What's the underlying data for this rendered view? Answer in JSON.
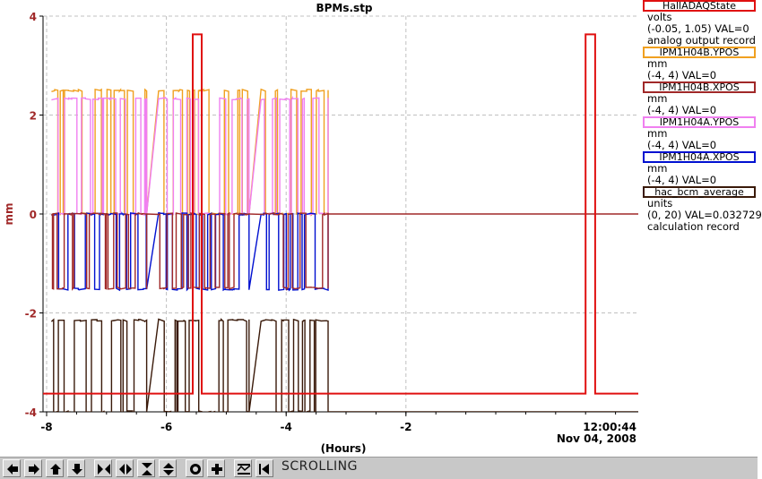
{
  "chart_data": {
    "type": "line",
    "title": "BPMs.stp",
    "xlabel": "(Hours)",
    "ylabel": "mm",
    "xlim": [
      -8.06,
      1.88
    ],
    "ylim": [
      -4,
      4
    ],
    "x_ticks": [
      -8,
      -6,
      -4,
      -2
    ],
    "x_tick_labels": [
      "-8",
      "-6",
      "-4",
      "-2"
    ],
    "y_ticks": [
      4,
      2,
      0,
      -2,
      -4
    ],
    "y_tick_labels": [
      "4",
      "2",
      "0",
      "-2",
      "-4"
    ],
    "end_time": "12:00:44",
    "end_date": "Nov 04, 2008",
    "grid": true,
    "series": [
      {
        "name": "HallADAQState",
        "color": "#e01010",
        "segments": [
          [
            [
              -8.06,
              -3.63
            ],
            [
              -5.56,
              -3.63
            ],
            [
              -5.56,
              3.63
            ],
            [
              -5.41,
              3.63
            ],
            [
              -5.41,
              -3.63
            ],
            [
              1.0,
              -3.63
            ],
            [
              1.0,
              3.63
            ],
            [
              1.16,
              3.63
            ],
            [
              1.16,
              -3.63
            ],
            [
              1.88,
              -3.63
            ]
          ]
        ]
      },
      {
        "name": "IPM1H04B.YPOS",
        "color": "#f0a020",
        "high": 2.5,
        "low": 0.0,
        "segments": [
          [
            -7.92,
            -6.33
          ],
          [
            -6.13,
            -4.62
          ],
          [
            -4.42,
            -3.3
          ]
        ]
      },
      {
        "name": "IPM1H04A.YPOS",
        "color": "#f080f0",
        "high": 2.33,
        "low": 0.0,
        "segments": [
          [
            -7.92,
            -6.33
          ],
          [
            -6.13,
            -4.62
          ],
          [
            -4.42,
            -3.3
          ]
        ]
      },
      {
        "name": "IPM1H04A.XPOS",
        "color": "#0010d0",
        "high": 0.0,
        "low": -1.52,
        "segments": [
          [
            -7.92,
            -6.33
          ],
          [
            -6.13,
            -4.62
          ],
          [
            -4.42,
            -3.3
          ]
        ]
      },
      {
        "name": "IPM1H04B.XPOS",
        "color": "#a02828",
        "high": 0.0,
        "low": -1.5,
        "baseline": 0.0,
        "segments": [
          [
            -7.92,
            -6.33
          ],
          [
            -6.13,
            -4.62
          ],
          [
            -4.42,
            -3.3
          ]
        ]
      },
      {
        "name": "hac_bcm_average",
        "color": "#3a1a0a",
        "high": -2.15,
        "low": -4.0,
        "baseline": -4.0,
        "segments": [
          [
            -7.92,
            -6.33
          ],
          [
            -6.13,
            -4.62
          ],
          [
            -4.42,
            -3.3
          ]
        ]
      }
    ]
  },
  "legend": [
    {
      "name": "HallADAQState",
      "color": "#e01010",
      "lines": [
        "volts",
        "(-0.05, 1.05) VAL=0",
        "analog output record"
      ]
    },
    {
      "name": "IPM1H04B.YPOS",
      "color": "#f0a020",
      "lines": [
        "mm",
        "(-4, 4) VAL=0"
      ]
    },
    {
      "name": "IPM1H04B.XPOS",
      "color": "#a02828",
      "lines": [
        "mm",
        "(-4, 4) VAL=0"
      ]
    },
    {
      "name": "IPM1H04A.YPOS",
      "color": "#f080f0",
      "lines": [
        "mm",
        "(-4, 4) VAL=0"
      ]
    },
    {
      "name": "IPM1H04A.XPOS",
      "color": "#0010d0",
      "lines": [
        "mm",
        "(-4, 4) VAL=0"
      ]
    },
    {
      "name": "hac_bcm_average",
      "color": "#3a1a0a",
      "lines": [
        "units",
        "(0, 20) VAL=0.032729",
        "calculation record"
      ]
    }
  ],
  "toolbar": {
    "buttons": [
      {
        "icon": "arrow-left-icon"
      },
      {
        "icon": "arrow-right-icon"
      },
      {
        "icon": "arrow-up-icon"
      },
      {
        "icon": "arrow-down-icon"
      },
      {
        "icon": "zoom-in-horizontal-icon"
      },
      {
        "icon": "zoom-out-horizontal-icon"
      },
      {
        "icon": "zoom-in-vertical-icon"
      },
      {
        "icon": "zoom-out-vertical-icon"
      },
      {
        "icon": "autoscale-icon"
      },
      {
        "icon": "add-icon"
      },
      {
        "icon": "stagger-icon"
      },
      {
        "icon": "scroll-back-icon"
      }
    ],
    "status": "SCROLLING"
  }
}
